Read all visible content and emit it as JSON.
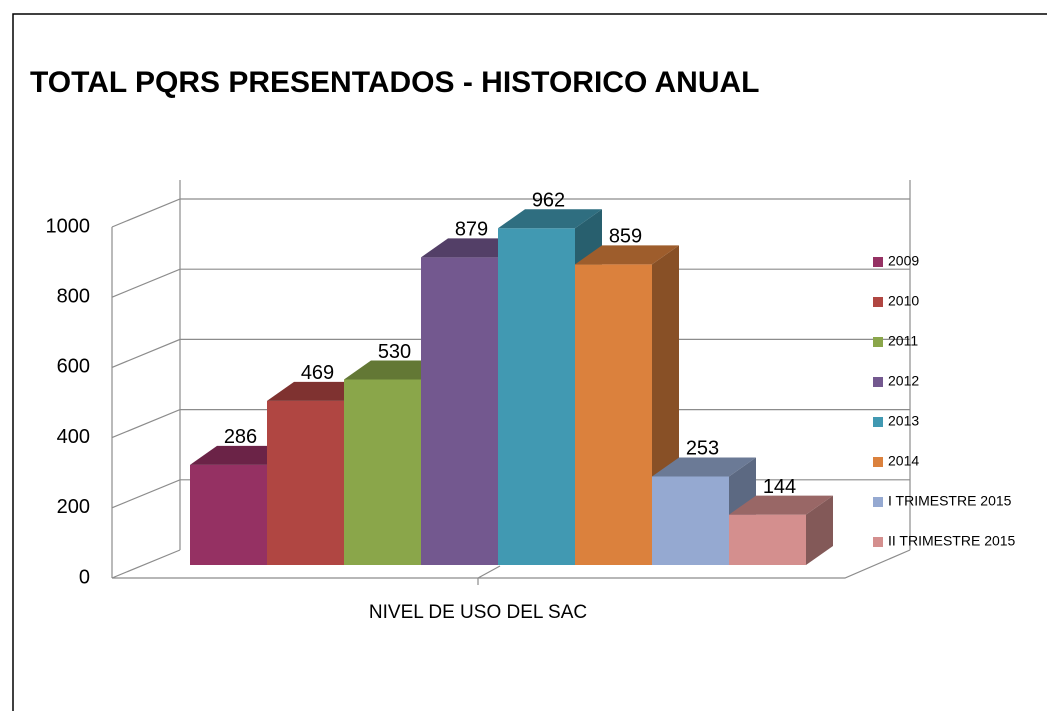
{
  "chart_data": {
    "type": "bar",
    "title": "TOTAL PQRS PRESENTADOS - HISTORICO ANUAL",
    "categories": [
      "NIVEL DE USO DEL SAC"
    ],
    "series": [
      {
        "name": "2009",
        "color": "#953163",
        "values": [
          286
        ]
      },
      {
        "name": "2010",
        "color": "#b04642",
        "values": [
          469
        ]
      },
      {
        "name": "2011",
        "color": "#8aa64a",
        "values": [
          530
        ]
      },
      {
        "name": "2012",
        "color": "#73588f",
        "values": [
          879
        ]
      },
      {
        "name": "2013",
        "color": "#4199b2",
        "values": [
          962
        ]
      },
      {
        "name": "2014",
        "color": "#db813d",
        "values": [
          859
        ]
      },
      {
        "name": "I TRIMESTRE 2015",
        "color": "#95a9d1",
        "values": [
          253
        ]
      },
      {
        "name": "II TRIMESTRE 2015",
        "color": "#d48f8e",
        "values": [
          144
        ]
      }
    ],
    "ylim": [
      0,
      1000
    ],
    "yticks": [
      0,
      200,
      400,
      600,
      800,
      1000
    ],
    "grid": true,
    "legend": "right"
  }
}
